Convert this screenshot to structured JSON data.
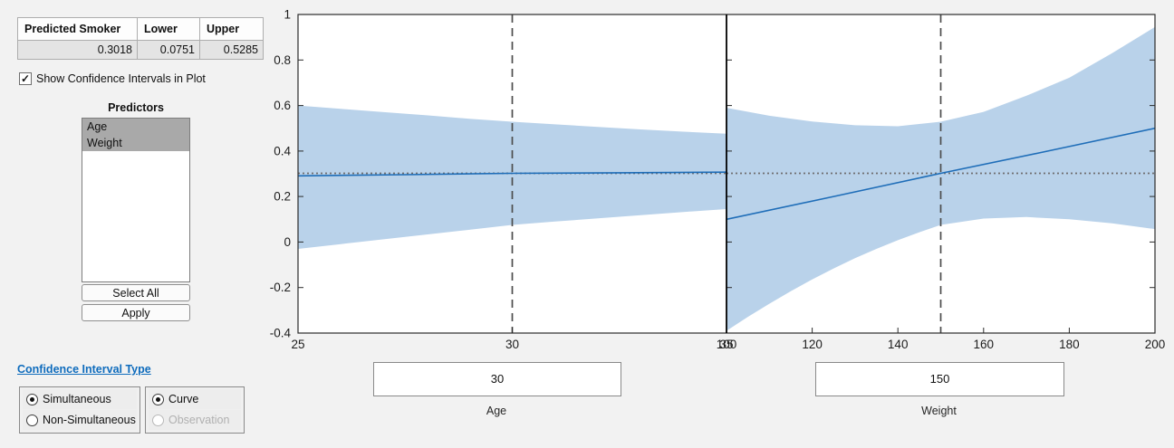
{
  "colors": {
    "window_bg": "#f2f2f2",
    "plot_bg": "#ffffff",
    "band": "#b9d2ea",
    "fit_line": "#1e6db8",
    "dashed_line": "#4d4d4d",
    "dotted_line": "#6f6f6f",
    "axis": "#2b2b2b",
    "link_blue": "#0f6cbd",
    "selection_gray": "#a9a9a9"
  },
  "icons": {
    "checkmark": "✓"
  },
  "results_table": {
    "headers": [
      "Predicted Smoker",
      "Lower",
      "Upper"
    ],
    "values": [
      "0.3018",
      "0.0751",
      "0.5285"
    ]
  },
  "checkbox": {
    "label": "Show Confidence Intervals in Plot",
    "checked": true
  },
  "predictors": {
    "title": "Predictors",
    "items": [
      {
        "label": "Age",
        "selected": true
      },
      {
        "label": "Weight",
        "selected": true
      }
    ],
    "select_all_label": "Select All",
    "apply_label": "Apply"
  },
  "ci_link_label": "Confidence Interval Type",
  "ci_type": {
    "options": [
      {
        "label": "Simultaneous",
        "selected": true,
        "disabled": false
      },
      {
        "label": "Non-Simultaneous",
        "selected": false,
        "disabled": false
      }
    ]
  },
  "ci_target": {
    "options": [
      {
        "label": "Curve",
        "selected": true,
        "disabled": false
      },
      {
        "label": "Observation",
        "selected": false,
        "disabled": true
      }
    ]
  },
  "inputs": {
    "age": {
      "value": "30",
      "label": "Age"
    },
    "weight": {
      "value": "150",
      "label": "Weight"
    }
  },
  "prediction": {
    "value": 0.3018,
    "lower": 0.0751,
    "upper": 0.5285
  },
  "chart_data": [
    {
      "type": "area",
      "title": "",
      "xlabel": "Age",
      "ylabel": "Predicted Smoker",
      "xlim": [
        25,
        35
      ],
      "ylim": [
        -0.4,
        1
      ],
      "x_ticks": [
        25,
        30,
        35
      ],
      "y_ticks": [
        1,
        0.8,
        0.6,
        0.4,
        0.2,
        0,
        -0.2,
        -0.4
      ],
      "vline": 30,
      "hline": 0.3018,
      "grid": false,
      "legend": null,
      "series": [
        {
          "name": "fit",
          "x": [
            25,
            27.5,
            30,
            32.5,
            35
          ],
          "y": [
            0.291,
            0.296,
            0.3018,
            0.3045,
            0.307
          ]
        },
        {
          "name": "upper_ci",
          "x": [
            25,
            26,
            27,
            28,
            29,
            30,
            31,
            32,
            33,
            34,
            35
          ],
          "y": [
            0.6,
            0.585,
            0.571,
            0.557,
            0.542,
            0.5285,
            0.517,
            0.506,
            0.495,
            0.485,
            0.476
          ]
        },
        {
          "name": "lower_ci",
          "x": [
            25,
            26,
            27,
            28,
            29,
            30,
            31,
            32,
            33,
            34,
            35
          ],
          "y": [
            -0.03,
            -0.009,
            0.012,
            0.033,
            0.054,
            0.0751,
            0.09,
            0.104,
            0.118,
            0.132,
            0.145
          ]
        }
      ]
    },
    {
      "type": "area",
      "title": "",
      "xlabel": "Weight",
      "ylabel": "Predicted Smoker",
      "xlim": [
        100,
        200
      ],
      "ylim": [
        -0.4,
        1
      ],
      "x_ticks": [
        100,
        120,
        140,
        160,
        180,
        200
      ],
      "y_ticks": [
        1,
        0.8,
        0.6,
        0.4,
        0.2,
        0,
        -0.2,
        -0.4
      ],
      "vline": 150,
      "hline": 0.3018,
      "grid": false,
      "legend": null,
      "series": [
        {
          "name": "fit",
          "x": [
            100,
            125,
            150,
            175,
            200
          ],
          "y": [
            0.1,
            0.2,
            0.3018,
            0.4,
            0.5
          ]
        },
        {
          "name": "upper_ci",
          "x": [
            100,
            110,
            120,
            130,
            140,
            150,
            160,
            170,
            180,
            190,
            200
          ],
          "y": [
            0.59,
            0.555,
            0.53,
            0.513,
            0.509,
            0.5285,
            0.572,
            0.643,
            0.722,
            0.83,
            0.945
          ]
        },
        {
          "name": "lower_ci",
          "x": [
            100,
            105,
            110,
            115,
            120,
            125,
            130,
            135,
            140,
            145,
            150,
            160,
            170,
            180,
            190,
            200
          ],
          "y": [
            -0.39,
            -0.329,
            -0.271,
            -0.216,
            -0.164,
            -0.116,
            -0.071,
            -0.03,
            0.008,
            0.043,
            0.0751,
            0.103,
            0.11,
            0.1,
            0.082,
            0.057
          ]
        }
      ]
    }
  ]
}
